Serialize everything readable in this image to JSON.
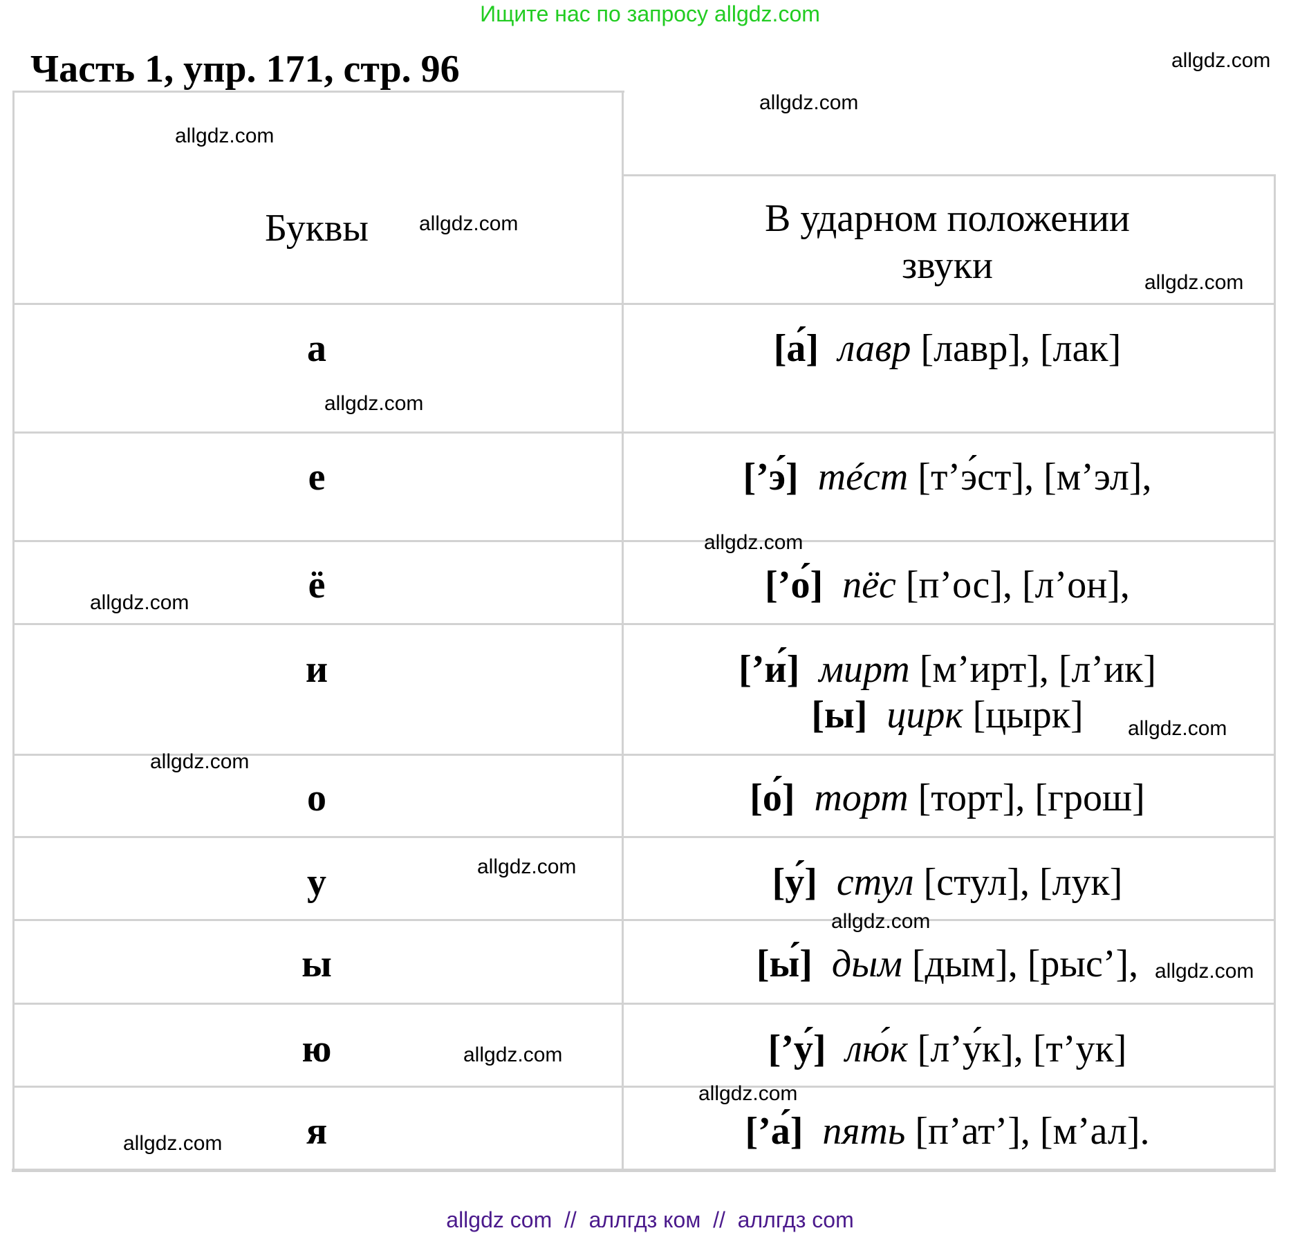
{
  "top_banner": "Ищите нас по запросу allgdz.com",
  "title": "Часть 1, упр. 171, стр. 96",
  "table": {
    "headers": [
      "Буквы",
      "В ударном положении",
      "звуки"
    ],
    "rows": [
      {
        "letter": "а",
        "lines": [
          {
            "sound": "[а́]",
            "word": "лавр",
            "transcription": "[лавр], [лак]"
          }
        ]
      },
      {
        "letter": "е",
        "lines": [
          {
            "sound": "[’э́]",
            "word": "тéст",
            "transcription": "[т’э́ст], [м’эл],"
          }
        ]
      },
      {
        "letter": "ё",
        "lines": [
          {
            "sound": "[’о́]",
            "word": "пёс",
            "transcription": "[п’ос], [л’он],"
          }
        ]
      },
      {
        "letter": "и",
        "lines": [
          {
            "sound": "[’и́]",
            "word": "мирт",
            "transcription": "[м’ирт], [л’ик]"
          },
          {
            "sound": "[ы]",
            "word": "цирк",
            "transcription": "[цырк]"
          }
        ]
      },
      {
        "letter": "о",
        "lines": [
          {
            "sound": "[о́]",
            "word": "торт",
            "transcription": "[торт], [грош]"
          }
        ]
      },
      {
        "letter": "у",
        "lines": [
          {
            "sound": "[у́]",
            "word": "стул",
            "transcription": "[стул], [лук]"
          }
        ]
      },
      {
        "letter": "ы",
        "lines": [
          {
            "sound": "[ы́]",
            "word": "дым",
            "transcription": "[дым], [рыс’],"
          }
        ]
      },
      {
        "letter": "ю",
        "lines": [
          {
            "sound": "[’у́]",
            "word": "лю́к",
            "transcription": "[л’у́к], [т’ук]"
          }
        ]
      },
      {
        "letter": "я",
        "lines": [
          {
            "sound": "[’а́]",
            "word": "пять",
            "transcription": "[п’ат’], [м’ал]."
          }
        ]
      }
    ]
  },
  "watermark": "allgdz.com",
  "footer": "allgdz com  //  аллгдз ком  //  аллгдз com",
  "colors": {
    "banner": "#22cc22",
    "footer": "#4b1a8c",
    "border": "#d2d2d2"
  }
}
